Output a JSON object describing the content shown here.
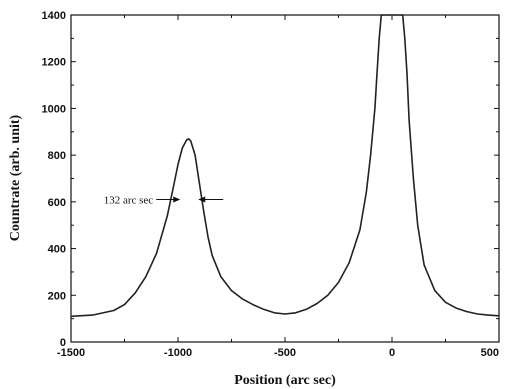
{
  "chart_data": {
    "type": "line",
    "title": "",
    "xlabel": "Position (arc sec)",
    "ylabel": "Countrate (arb. unit)",
    "xlim": [
      -1500,
      500
    ],
    "ylim": [
      0,
      1400
    ],
    "xticks": [
      "-1500",
      "-1000",
      "-500",
      "0",
      "500"
    ],
    "yticks": [
      "0",
      "200",
      "400",
      "600",
      "800",
      "1000",
      "1200",
      "1400"
    ],
    "grid": false,
    "series": [
      {
        "color": "#222222",
        "x": [
          -1500,
          -1400,
          -1300,
          -1250,
          -1200,
          -1150,
          -1100,
          -1050,
          -1020,
          -1000,
          -980,
          -960,
          -950,
          -940,
          -920,
          -900,
          -880,
          -860,
          -840,
          -800,
          -750,
          -700,
          -650,
          -600,
          -550,
          -500,
          -450,
          -400,
          -350,
          -300,
          -250,
          -200,
          -150,
          -120,
          -100,
          -80,
          -70,
          -60,
          -50,
          -45,
          -40,
          40,
          45,
          50,
          60,
          70,
          80,
          100,
          120,
          150,
          200,
          250,
          300,
          350,
          400,
          450,
          500
        ],
        "y": [
          110,
          115,
          135,
          160,
          210,
          280,
          380,
          540,
          670,
          760,
          830,
          865,
          870,
          860,
          800,
          680,
          560,
          450,
          370,
          280,
          220,
          185,
          160,
          140,
          125,
          120,
          125,
          140,
          165,
          200,
          255,
          340,
          480,
          640,
          800,
          1000,
          1150,
          1300,
          1400,
          1400,
          1400,
          1400,
          1400,
          1400,
          1300,
          1150,
          950,
          700,
          500,
          330,
          220,
          170,
          145,
          130,
          120,
          115,
          112
        ]
      }
    ],
    "annotations": [
      {
        "text": "132 arc sec",
        "x_from": -985,
        "x_to": -910,
        "y": 610
      }
    ]
  }
}
